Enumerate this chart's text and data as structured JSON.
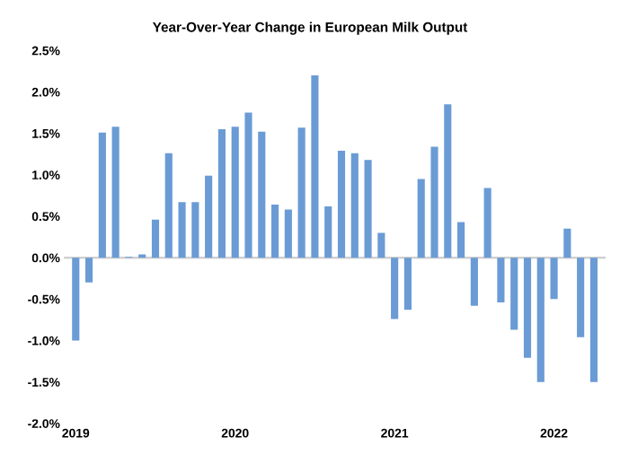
{
  "chart_data": {
    "type": "bar",
    "title": "Year-Over-Year Change in European Milk Output",
    "categories": [
      "2019",
      null,
      null,
      null,
      null,
      null,
      null,
      null,
      null,
      null,
      null,
      null,
      "2020",
      null,
      null,
      null,
      null,
      null,
      null,
      null,
      null,
      null,
      null,
      null,
      "2021",
      null,
      null,
      null,
      null,
      null,
      null,
      null,
      null,
      null,
      null,
      null,
      "2022",
      null,
      null,
      null
    ],
    "values": [
      -1.0,
      -0.3,
      1.51,
      1.58,
      0.01,
      0.04,
      0.46,
      1.26,
      0.67,
      0.67,
      0.99,
      1.55,
      1.58,
      1.75,
      1.52,
      0.64,
      0.58,
      1.57,
      2.2,
      0.62,
      1.29,
      1.26,
      1.18,
      0.3,
      -0.74,
      -0.63,
      0.95,
      1.34,
      1.85,
      0.43,
      -0.58,
      0.84,
      -0.54,
      -0.87,
      -1.21,
      -1.5,
      -0.5,
      0.35,
      -0.96,
      -1.5
    ],
    "color": "#6a9bd5",
    "ylim": [
      -2.0,
      2.5
    ],
    "yticks": [
      {
        "value": -2.0,
        "label": "-2.0%"
      },
      {
        "value": -1.5,
        "label": "-1.5%"
      },
      {
        "value": -1.0,
        "label": "-1.0%"
      },
      {
        "value": -0.5,
        "label": "-0.5%"
      },
      {
        "value": 0.0,
        "label": "0.0%"
      },
      {
        "value": 0.5,
        "label": "0.5%"
      },
      {
        "value": 1.0,
        "label": "1.0%"
      },
      {
        "value": 1.5,
        "label": "1.5%"
      },
      {
        "value": 2.0,
        "label": "2.0%"
      },
      {
        "value": 2.5,
        "label": "2.5%"
      }
    ],
    "legend": false
  }
}
